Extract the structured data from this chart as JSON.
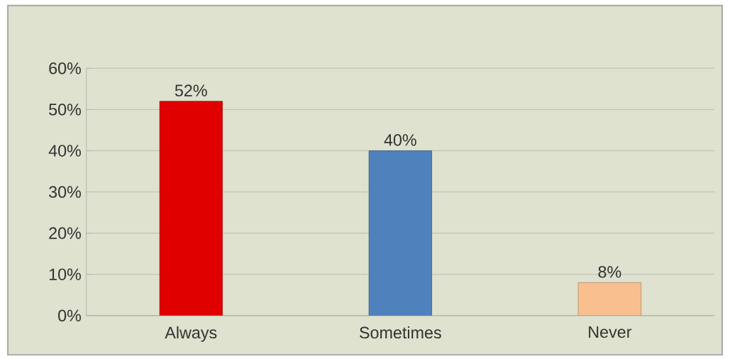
{
  "chart_data": {
    "type": "bar",
    "categories": [
      "Always",
      "Sometimes",
      "Never"
    ],
    "values": [
      52,
      40,
      8
    ],
    "colors": [
      "#e00000",
      "#4f81bd",
      "#fabf8f"
    ],
    "value_labels": [
      "52%",
      "40%",
      "8%"
    ],
    "ylim": [
      0,
      60
    ],
    "yticks": [
      {
        "value": 0,
        "label": "0%"
      },
      {
        "value": 10,
        "label": "10%"
      },
      {
        "value": 20,
        "label": "20%"
      },
      {
        "value": 30,
        "label": "30%"
      },
      {
        "value": 40,
        "label": "40%"
      },
      {
        "value": 50,
        "label": "50%"
      },
      {
        "value": 60,
        "label": "60%"
      }
    ],
    "grid": "y"
  }
}
